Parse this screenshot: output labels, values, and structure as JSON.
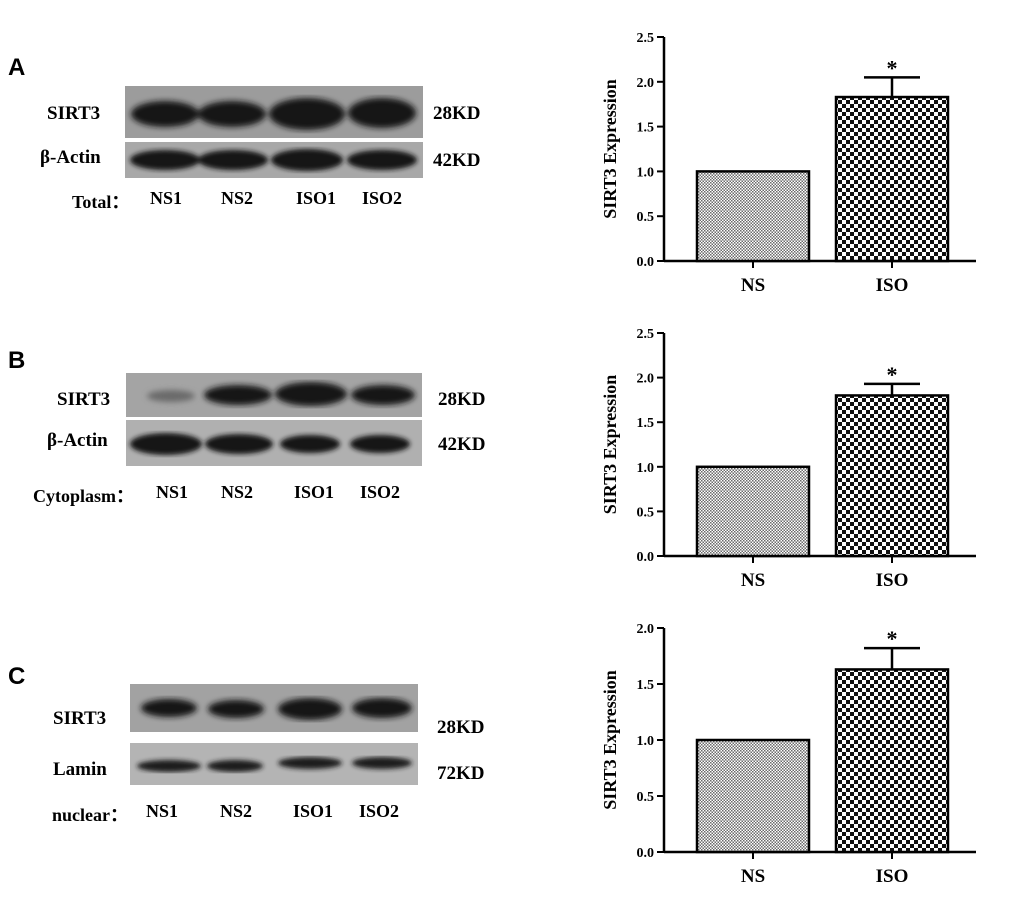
{
  "panels": [
    {
      "letter": "A",
      "blot": {
        "target_label": "SIRT3",
        "control_label": "β-Actin",
        "target_kd": "28KD",
        "control_kd": "42KD",
        "fraction_label": "Total：",
        "lanes": [
          "NS1",
          "NS2",
          "ISO1",
          "ISO2"
        ]
      }
    },
    {
      "letter": "B",
      "blot": {
        "target_label": "SIRT3",
        "control_label": "β-Actin",
        "target_kd": "28KD",
        "control_kd": "42KD",
        "fraction_label": "Cytoplasm：",
        "lanes": [
          "NS1",
          "NS2",
          "ISO1",
          "ISO2"
        ]
      }
    },
    {
      "letter": "C",
      "blot": {
        "target_label": "SIRT3",
        "control_label": "Lamin",
        "target_kd": "28KD",
        "control_kd": "72KD",
        "fraction_label": "nuclear：",
        "lanes": [
          "NS1",
          "NS2",
          "ISO1",
          "ISO2"
        ]
      }
    }
  ],
  "chart_data": [
    {
      "type": "bar",
      "categories": [
        "NS",
        "ISO"
      ],
      "values": [
        1.0,
        1.83
      ],
      "error": [
        0,
        0.22
      ],
      "significance": [
        "",
        "*"
      ],
      "ylabel": "SIRT3 Expression",
      "ylim": [
        0,
        2.5
      ],
      "yticks": [
        "0.0",
        "0.5",
        "1.0",
        "1.5",
        "2.0",
        "2.5"
      ],
      "grid": false
    },
    {
      "type": "bar",
      "categories": [
        "NS",
        "ISO"
      ],
      "values": [
        1.0,
        1.8
      ],
      "error": [
        0,
        0.13
      ],
      "significance": [
        "",
        "*"
      ],
      "ylabel": "SIRT3 Expression",
      "ylim": [
        0,
        2.5
      ],
      "yticks": [
        "0.0",
        "0.5",
        "1.0",
        "1.5",
        "2.0",
        "2.5"
      ],
      "grid": false
    },
    {
      "type": "bar",
      "categories": [
        "NS",
        "ISO"
      ],
      "values": [
        1.0,
        1.63
      ],
      "error": [
        0,
        0.19
      ],
      "significance": [
        "",
        "*"
      ],
      "ylabel": "SIRT3 Expression",
      "ylim": [
        0,
        2.0
      ],
      "yticks": [
        "0.0",
        "0.5",
        "1.0",
        "1.5",
        "2.0"
      ],
      "grid": false
    }
  ]
}
